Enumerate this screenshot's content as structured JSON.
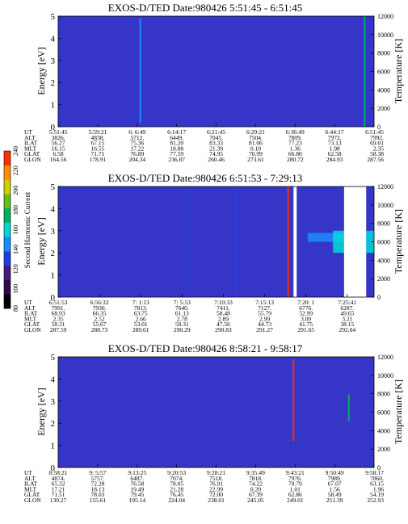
{
  "colors": {
    "background": "#3535c8",
    "data_gap": "#ffffff",
    "colorbar": [
      "#000000",
      "#2a0a4a",
      "#4a1a7a",
      "#2040e0",
      "#1a8cff",
      "#00d8d8",
      "#00b060",
      "#60c020",
      "#d0d000",
      "#ff9000",
      "#ff3000"
    ]
  },
  "colorbar": {
    "label": "Second Harmonic Current",
    "ticks": [
      "80",
      "100",
      "120",
      "140",
      "160",
      "180",
      "200",
      "220",
      "240"
    ]
  },
  "panels": [
    {
      "title": "EXOS-D/TED   Date:980426  5:51:45 - 6:51:45",
      "ylabel": "Energy [eV]",
      "yticks": [
        "0",
        "1",
        "2",
        "3",
        "4",
        "5"
      ],
      "y2label": "Temperature [K]",
      "y2ticks": [
        "0",
        "2000",
        "4000",
        "6000",
        "8000",
        "10000",
        "12000"
      ],
      "table": {
        "row_labels": [
          "UT",
          "ALT",
          "ILAT",
          "MLT",
          "GLAT",
          "GLON"
        ],
        "columns": [
          [
            "5:51:45",
            "3826.",
            "56.27",
            "16.15",
            "6.58",
            "164.56"
          ],
          [
            "5:59:21",
            "4838.",
            "67.15",
            "16.55",
            "71.71",
            "178.91"
          ],
          [
            "6: 6:49",
            "5712.",
            "75.36",
            "17.22",
            "76.89",
            "204.34"
          ],
          [
            "6:14:17",
            "6449.",
            "81.20",
            "18.88",
            "77.59",
            "236.87"
          ],
          [
            "6:21:45",
            "7045.",
            "83.33",
            "21.39",
            "74.95",
            "260.46"
          ],
          [
            "6:29:21",
            "7504.",
            "81.06",
            "0.10",
            "70.99",
            "273.61"
          ],
          [
            "6:36:49",
            "7809.",
            "77.23",
            "1.36",
            "66.80",
            "280.72"
          ],
          [
            "6:44:17",
            "7972.",
            "73.13",
            "1.98",
            "62.58",
            "284.93"
          ],
          [
            "6:51:45",
            "7992.",
            "69.01",
            "2.35",
            "58.38",
            "287.56"
          ]
        ]
      }
    },
    {
      "title": "EXOS-D/TED   Date:980426  6:51:53 - 7:29:13",
      "ylabel": "Energy [eV]",
      "yticks": [
        "0",
        "1",
        "2",
        "3",
        "4",
        "5"
      ],
      "y2label": "Temperature [K]",
      "y2ticks": [
        "0",
        "2000",
        "4000",
        "6000",
        "8000",
        "10000",
        "12000"
      ],
      "table": {
        "row_labels": [
          "UT",
          "ALT",
          "ILAT",
          "MLT",
          "GLAT",
          "GLON"
        ],
        "columns": [
          [
            "6:51:53",
            "7991.",
            "68.93",
            "2.35",
            "58.31",
            "287.59"
          ],
          [
            "6:56:33",
            "7930.",
            "66.35",
            "2.52",
            "55.67",
            "288.73"
          ],
          [
            "7: 1:13",
            "7813.",
            "63.75",
            "2.66",
            "53.01",
            "289.61"
          ],
          [
            "7: 5:53",
            "7640.",
            "61.13",
            "2.78",
            "50.31",
            "290.29"
          ],
          [
            "7:10:33",
            "7411.",
            "58.48",
            "2.89",
            "47.56",
            "290.83"
          ],
          [
            "7:15:13",
            "7127.",
            "55.79",
            "2.99",
            "44.73",
            "291.27"
          ],
          [
            "7:20: 1",
            "6776.",
            "52.99",
            "3.09",
            "41.75",
            "291.65"
          ],
          [
            "7:25:41",
            "6287.",
            "49.65",
            "3.21",
            "38.15",
            "292.04"
          ]
        ]
      }
    },
    {
      "title": "EXOS-D/TED   Date:980426  8:58:21 - 9:58:17",
      "ylabel": "Energy [eV]",
      "yticks": [
        "0",
        "1",
        "2",
        "3",
        "4",
        "5"
      ],
      "y2label": "Temperature [K]",
      "y2ticks": [
        "0",
        "2000",
        "4000",
        "6000",
        "8000",
        "10000",
        "12000"
      ],
      "table": {
        "row_labels": [
          "UT",
          "ALT",
          "ILAT",
          "MLT",
          "GLAT",
          "GLON"
        ],
        "columns": [
          [
            "8:58:21",
            "4874.",
            "65.32",
            "17.21",
            "71.51",
            "130.27"
          ],
          [
            "9: 5:57",
            "5757.",
            "72.28",
            "18.13",
            "78.03",
            "155.61"
          ],
          [
            "9:13:25",
            "6487.",
            "76.58",
            "19.49",
            "79.45",
            "195.14"
          ],
          [
            "9:20:53",
            "7074.",
            "78.05",
            "21.28",
            "76.45",
            "224.04"
          ],
          [
            "9:28:21",
            "7518.",
            "76.91",
            "22.99",
            "72.00",
            "238.01"
          ],
          [
            "9:35:49",
            "7818.",
            "74.22",
            "0.20",
            "67.39",
            "245.05"
          ],
          [
            "9:43:21",
            "7976.",
            "70.79",
            "1.01",
            "62.86",
            "249.01"
          ],
          [
            "9:50:49",
            "7989.",
            "67.07",
            "1.56",
            "58.49",
            "251.39"
          ],
          [
            "9:58:17",
            "7860.",
            "63.15",
            "1.96",
            "54.19",
            "252.93"
          ]
        ]
      }
    }
  ],
  "chart_data": [
    {
      "type": "heatmap",
      "title": "EXOS-D/TED   Date:980426  5:51:45 - 6:51:45",
      "xlabel": "",
      "ylabel": "Energy [eV]",
      "y2label": "Temperature [K]",
      "ylim": [
        0,
        5
      ],
      "y2lim": [
        0,
        12000
      ],
      "x_ticks": [
        "5:51:45",
        "5:59:21",
        "6: 6:49",
        "6:14:17",
        "6:21:45",
        "6:29:21",
        "6:36:49",
        "6:44:17",
        "6:51:45"
      ],
      "colorbar_label": "Second Harmonic Current",
      "colorbar_range": [
        80,
        240
      ],
      "features": [
        {
          "kind": "stripe",
          "t": 0.26,
          "e_min": 0.2,
          "e_max": 4.9,
          "level": 150
        },
        {
          "kind": "stripe",
          "t": 0.97,
          "e_min": 0.0,
          "e_max": 5.0,
          "level": 175
        }
      ]
    },
    {
      "type": "heatmap",
      "title": "EXOS-D/TED   Date:980426  6:51:53 - 7:29:13",
      "xlabel": "",
      "ylabel": "Energy [eV]",
      "y2label": "Temperature [K]",
      "ylim": [
        0,
        5
      ],
      "y2lim": [
        0,
        12000
      ],
      "x_ticks": [
        "6:51:53",
        "6:56:33",
        "7: 1:13",
        "7: 5:53",
        "7:10:33",
        "7:15:13",
        "7:20: 1",
        "7:25:41"
      ],
      "colorbar_label": "Second Harmonic Current",
      "colorbar_range": [
        80,
        240
      ],
      "features": [
        {
          "kind": "stripe",
          "t": 0.41,
          "e_min": 0.0,
          "e_max": 5.0,
          "level": 135
        },
        {
          "kind": "stripe",
          "t": 0.565,
          "e_min": 0.0,
          "e_max": 5.0,
          "level": 135
        },
        {
          "kind": "stripe",
          "t": 0.728,
          "e_min": 0.0,
          "e_max": 5.0,
          "level": 240
        },
        {
          "kind": "band",
          "t_min": 0.79,
          "t_max": 0.905,
          "e_min": 2.5,
          "e_max": 2.9,
          "level": 140
        },
        {
          "kind": "band",
          "t_min": 0.87,
          "t_max": 1.0,
          "e_min": 2.0,
          "e_max": 3.0,
          "level": 155
        },
        {
          "kind": "gap",
          "t_min": 0.745,
          "t_max": 0.755
        },
        {
          "kind": "gap",
          "t_min": 0.905,
          "t_max": 0.975
        }
      ]
    },
    {
      "type": "heatmap",
      "title": "EXOS-D/TED   Date:980426  8:58:21 - 9:58:17",
      "xlabel": "",
      "ylabel": "Energy [eV]",
      "y2label": "Temperature [K]",
      "ylim": [
        0,
        5
      ],
      "y2lim": [
        0,
        12000
      ],
      "x_ticks": [
        "8:58:21",
        "9: 5:57",
        "9:13:25",
        "9:20:53",
        "9:28:21",
        "9:35:49",
        "9:43:21",
        "9:50:49",
        "9:58:17"
      ],
      "features": [
        {
          "kind": "stripe",
          "t": 0.745,
          "e_min": 1.2,
          "e_max": 4.9,
          "level": 240
        },
        {
          "kind": "stripe",
          "t": 0.92,
          "e_min": 2.1,
          "e_max": 3.3,
          "level": 175
        }
      ]
    }
  ]
}
